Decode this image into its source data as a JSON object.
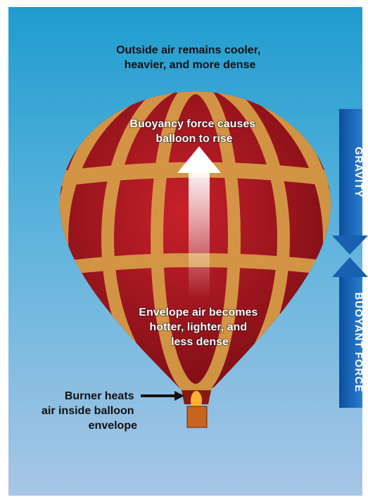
{
  "labels": {
    "outside_air": [
      "Outside air remains cooler,",
      "heavier, and more dense"
    ],
    "buoyancy": [
      "Buoyancy force causes",
      "balloon to rise"
    ],
    "envelope_air": [
      "Envelope air becomes",
      "hotter, lighter, and",
      "less dense"
    ],
    "burner": [
      "Burner heats",
      "air inside balloon",
      "envelope"
    ]
  },
  "arrows": {
    "gravity": "GRAVITY",
    "buoyant_force": "BUOYANT FORCE"
  }
}
